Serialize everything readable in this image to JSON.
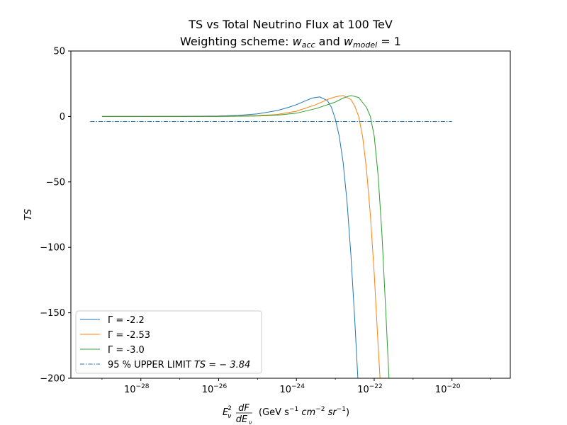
{
  "chart_data": {
    "type": "line",
    "title_line1": "TS vs Total Neutrino Flux at 100 TeV",
    "title_line2_prefix": "Weighting scheme: ",
    "title_line2_w": "w",
    "title_line2_acc": "acc",
    "title_line2_and": " and ",
    "title_line2_model": "model",
    "title_line2_suffix": " = 1",
    "ylabel": "TS",
    "xlabel_prefix": "E",
    "xlabel_nu": "ν",
    "xlabel_sq": "2",
    "xlabel_dF": "dF",
    "xlabel_dE": "dE",
    "xlabel_units": "(GeV s",
    "xlabel_u1": "−1",
    "xlabel_cm": " cm",
    "xlabel_u2": "−2",
    "xlabel_sr": " sr",
    "xlabel_u3": "−1",
    "xlabel_close": ")",
    "x_scale": "log",
    "xlim_log10": [
      -29.8,
      -18.5
    ],
    "ylim": [
      -200,
      50
    ],
    "x_ticks": [
      {
        "base": "10",
        "exp": "−28",
        "log10": -28
      },
      {
        "base": "10",
        "exp": "−26",
        "log10": -26
      },
      {
        "base": "10",
        "exp": "−24",
        "log10": -24
      },
      {
        "base": "10",
        "exp": "−22",
        "log10": -22
      },
      {
        "base": "10",
        "exp": "−20",
        "log10": -20
      }
    ],
    "y_ticks": [
      {
        "label": "50",
        "value": 50
      },
      {
        "label": "0",
        "value": 0
      },
      {
        "label": "−50",
        "value": -50
      },
      {
        "label": "−100",
        "value": -100
      },
      {
        "label": "−150",
        "value": -150
      },
      {
        "label": "−200",
        "value": -200
      }
    ],
    "series": [
      {
        "name": "Γ = -2.2",
        "color": "#1f77b4",
        "log10_x": [
          -29,
          -27,
          -26,
          -25.5,
          -25,
          -24.5,
          -24.2,
          -24,
          -23.8,
          -23.6,
          -23.4,
          -23.2,
          -23.1,
          -23.0,
          -22.9,
          -22.8,
          -22.7,
          -22.6,
          -22.5,
          -22.42
        ],
        "y": [
          0,
          0.1,
          0.3,
          0.8,
          2,
          4.5,
          7,
          9,
          11.5,
          14,
          15,
          12,
          7,
          -2,
          -15,
          -35,
          -65,
          -105,
          -155,
          -200
        ]
      },
      {
        "name": "Γ = -2.53",
        "color": "#ff7f0e",
        "log10_x": [
          -29,
          -27,
          -26,
          -25,
          -24.5,
          -24,
          -23.5,
          -23.2,
          -23.0,
          -22.8,
          -22.6,
          -22.5,
          -22.4,
          -22.3,
          -22.2,
          -22.1,
          -22.0,
          -21.9,
          -21.85
        ],
        "y": [
          0,
          0,
          0.1,
          0.6,
          1.5,
          4,
          9,
          13,
          15,
          16,
          13,
          8,
          0,
          -15,
          -40,
          -75,
          -120,
          -175,
          -200
        ]
      },
      {
        "name": "Γ = -3.0",
        "color": "#2ca02c",
        "log10_x": [
          -29,
          -27,
          -26,
          -25,
          -24.5,
          -24,
          -23.5,
          -23.0,
          -22.8,
          -22.6,
          -22.4,
          -22.2,
          -22.1,
          -22.0,
          -21.9,
          -21.8,
          -21.7,
          -21.62
        ],
        "y": [
          0,
          0,
          0,
          0.4,
          1,
          2.5,
          6,
          11,
          14,
          16,
          14.5,
          7,
          0,
          -15,
          -45,
          -90,
          -150,
          -200
        ]
      }
    ],
    "hline": {
      "name": "95 % UPPER LIMIT ",
      "math": "TS = − 3.84",
      "color": "#1f77b4",
      "y": -3.84,
      "log10_x": [
        -29.3,
        -20
      ]
    },
    "legend_position": "lower-left",
    "grid": false
  }
}
